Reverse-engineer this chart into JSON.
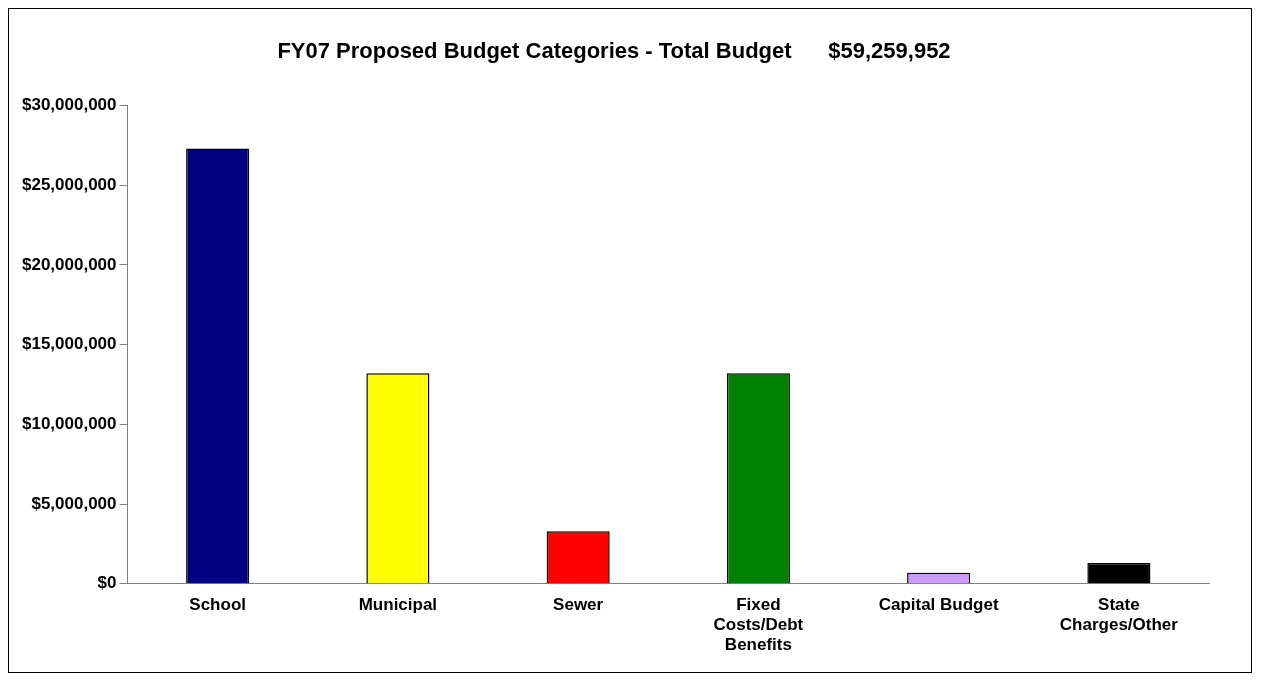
{
  "chart_data": {
    "type": "bar",
    "title": "FY07 Proposed Budget Categories - Total Budget      $59,259,952",
    "categories": [
      "School",
      "Municipal",
      "Sewer",
      "Fixed Costs/Debt Benefits",
      "Capital Budget",
      "State Charges/Other"
    ],
    "values": [
      27300000,
      13200000,
      3300000,
      13200000,
      700000,
      1300000
    ],
    "colors": [
      "#000080",
      "#ffff00",
      "#ff0000",
      "#008000",
      "#cc99ff",
      "#000000"
    ],
    "ylim": [
      0,
      30000000
    ],
    "yticks": [
      {
        "value": 0,
        "label": "$0"
      },
      {
        "value": 5000000,
        "label": "$5,000,000"
      },
      {
        "value": 10000000,
        "label": "$10,000,000"
      },
      {
        "value": 15000000,
        "label": "$15,000,000"
      },
      {
        "value": 20000000,
        "label": "$20,000,000"
      },
      {
        "value": 25000000,
        "label": "$25,000,000"
      },
      {
        "value": 30000000,
        "label": "$30,000,000"
      }
    ],
    "grid": false,
    "legend": false
  }
}
